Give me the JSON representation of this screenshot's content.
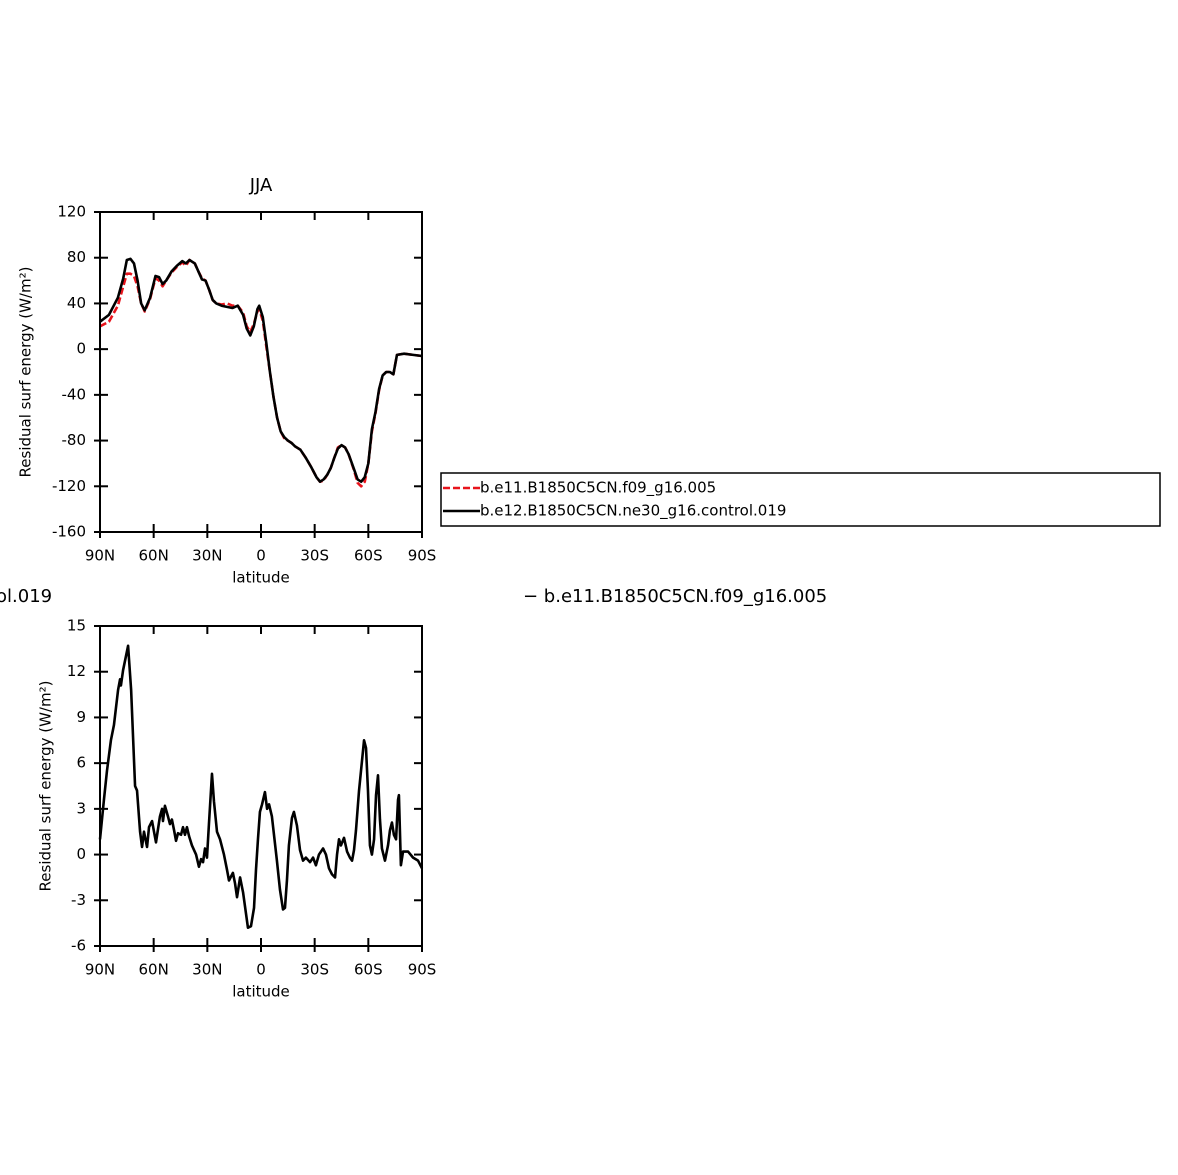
{
  "chart_data": [
    {
      "type": "line",
      "title": "JJA",
      "xlabel": "latitude",
      "ylabel": "Residual surf energy (W/m²)",
      "xlim": [
        90,
        -90
      ],
      "ylim": [
        -160,
        120
      ],
      "xticks": [
        {
          "value": 90,
          "label": "90N"
        },
        {
          "value": 60,
          "label": "60N"
        },
        {
          "value": 30,
          "label": "30N"
        },
        0,
        {
          "value": -30,
          "label": "30S"
        },
        {
          "value": -60,
          "label": "60S"
        },
        {
          "value": -90,
          "label": "90S"
        }
      ],
      "yticks": [
        -160,
        -120,
        -80,
        -40,
        0,
        40,
        80,
        120
      ],
      "x": [
        90,
        85,
        80,
        77,
        75,
        73,
        71,
        69,
        67,
        65,
        62,
        59,
        57,
        55,
        53,
        50,
        47,
        44,
        42,
        40,
        37,
        35,
        33,
        31,
        29,
        27,
        25,
        22,
        19,
        16,
        13,
        10,
        8,
        6,
        4,
        2,
        1,
        -1,
        -3,
        -5,
        -7,
        -9,
        -11,
        -13,
        -15,
        -17,
        -19,
        -22,
        -25,
        -28,
        -31,
        -33,
        -35,
        -37,
        -39,
        -41,
        -43,
        -45,
        -47,
        -49,
        -52,
        -54,
        -56,
        -58,
        -60,
        -62,
        -64,
        -66,
        -68,
        -70,
        -72,
        -74,
        -76,
        -80,
        -85,
        -90
      ],
      "series": [
        {
          "name": "b.e11.B1850C5CN.f09_g16.005",
          "color": "#e8141c",
          "linestyle": "dashed",
          "values": [
            20,
            24,
            38,
            55,
            66,
            66,
            64,
            55,
            40,
            33,
            44,
            62,
            60,
            55,
            60,
            67,
            72,
            76,
            73,
            78,
            75,
            68,
            62,
            60,
            52,
            43,
            40,
            39,
            40,
            38,
            38,
            32,
            20,
            15,
            22,
            33,
            35,
            25,
            2,
            -20,
            -42,
            -60,
            -72,
            -78,
            -80,
            -82,
            -85,
            -88,
            -95,
            -103,
            -112,
            -116,
            -115,
            -110,
            -104,
            -95,
            -86,
            -84,
            -86,
            -92,
            -106,
            -117,
            -120,
            -116,
            -100,
            -72,
            -56,
            -36,
            -23,
            -20,
            -20,
            -22,
            -5,
            -4,
            -5,
            -6
          ]
        },
        {
          "name": "b.e12.B1850C5CN.ne30_g16.control.019",
          "color": "#000000",
          "linestyle": "solid",
          "values": [
            24,
            30,
            45,
            62,
            78,
            79,
            75,
            60,
            40,
            34,
            45,
            64,
            63,
            57,
            60,
            68,
            73,
            77,
            75,
            78,
            75,
            68,
            61,
            60,
            52,
            43,
            40,
            38,
            37,
            36,
            38,
            30,
            18,
            12,
            20,
            35,
            38,
            28,
            5,
            -20,
            -42,
            -60,
            -72,
            -77,
            -80,
            -82,
            -85,
            -88,
            -95,
            -103,
            -112,
            -116,
            -114,
            -110,
            -104,
            -95,
            -87,
            -84,
            -86,
            -92,
            -105,
            -114,
            -116,
            -112,
            -100,
            -70,
            -55,
            -35,
            -23,
            -20,
            -20,
            -22,
            -5,
            -4,
            -5,
            -6
          ]
        }
      ]
    },
    {
      "type": "line",
      "title_parts": [
        "ol.019",
        "− b.e11.B1850C5CN.f09_g16.005"
      ],
      "xlabel": "latitude",
      "ylabel": "Residual surf energy (W/m²)",
      "xlim": [
        90,
        -90
      ],
      "ylim": [
        -6,
        15
      ],
      "xticks": [
        {
          "value": 90,
          "label": "90N"
        },
        {
          "value": 60,
          "label": "60N"
        },
        {
          "value": 30,
          "label": "30N"
        },
        0,
        {
          "value": -30,
          "label": "30S"
        },
        {
          "value": -60,
          "label": "60S"
        },
        {
          "value": -90,
          "label": "90S"
        }
      ],
      "yticks": [
        -6,
        -3,
        0,
        3,
        6,
        9,
        12,
        15
      ],
      "color": "#000000",
      "x": [
        90,
        87.8,
        86.1,
        83.9,
        82.2,
        79.9,
        78.8,
        78.3,
        77.1,
        74.3,
        72.6,
        70.4,
        69.3,
        67.6,
        66.5,
        65.4,
        63.7,
        62.6,
        60.9,
        59.8,
        58.7,
        56.5,
        55.3,
        54.8,
        53.7,
        52,
        50.9,
        49.8,
        48.6,
        47.5,
        46.4,
        44.7,
        43.6,
        42.5,
        41.4,
        40.2,
        38.6,
        36.3,
        34.7,
        33.5,
        32.4,
        31.3,
        30.2,
        29.1,
        27.4,
        26.3,
        24.6,
        22.9,
        20.7,
        19,
        17.9,
        15.7,
        14.5,
        13.4,
        11.7,
        10,
        7.3,
        5.6,
        3.9,
        2.8,
        1.7,
        0.6,
        -0.6,
        -2.2,
        -3.4,
        -4.5,
        -6.1,
        -8.9,
        -10.6,
        -12.3,
        -13.4,
        -14.5,
        -15.6,
        -17.3,
        -18.4,
        -20.1,
        -21.8,
        -23.5,
        -25.1,
        -27.4,
        -29.1,
        -30.7,
        -32.4,
        -34.7,
        -36.3,
        -38,
        -39.7,
        -41.4,
        -42.5,
        -43.6,
        -44.7,
        -46.4,
        -48.1,
        -49.7,
        -50.9,
        -52,
        -53.1,
        -54.8,
        -56.5,
        -57.6,
        -58.7,
        -59.8,
        -60.9,
        -62,
        -63.2,
        -64.3,
        -65.4,
        -66.5,
        -67.6,
        -69.3,
        -71,
        -72.1,
        -73.2,
        -74.3,
        -75.5,
        -76.6,
        -77.1,
        -78.2,
        -79.4,
        -82.2,
        -85,
        -87.8,
        -90
      ],
      "values": [
        1,
        3.6,
        5.5,
        7.5,
        8.5,
        10.8,
        11.5,
        11.1,
        12.1,
        13.7,
        10.8,
        4.5,
        4.2,
        1.5,
        0.5,
        1.5,
        0.5,
        1.8,
        2.2,
        1.5,
        0.8,
        2.5,
        3,
        2.2,
        3.2,
        2.5,
        2,
        2.3,
        1.6,
        0.9,
        1.4,
        1.3,
        1.8,
        1.3,
        1.8,
        1.2,
        0.6,
        0,
        -0.8,
        -0.3,
        -0.5,
        0.4,
        -0.2,
        2,
        5.3,
        3.5,
        1.5,
        1,
        0,
        -1,
        -1.7,
        -1.2,
        -1.9,
        -2.8,
        -1.5,
        -2.5,
        -4.8,
        -4.7,
        -3.5,
        -1,
        1,
        2.8,
        3.3,
        4.1,
        3,
        3.3,
        2.5,
        -0.4,
        -2.3,
        -3.6,
        -3.5,
        -1.7,
        0.6,
        2.4,
        2.8,
        1.9,
        0.3,
        -0.4,
        -0.2,
        -0.5,
        -0.2,
        -0.7,
        0,
        0.4,
        0,
        -0.9,
        -1.3,
        -1.5,
        0,
        1,
        0.6,
        1.1,
        0.2,
        -0.2,
        -0.4,
        0.3,
        1.6,
        4.2,
        6.2,
        7.5,
        7,
        4.2,
        0.6,
        0,
        1,
        3.9,
        5.2,
        2.3,
        0.4,
        -0.4,
        0.6,
        1.6,
        2.1,
        1.3,
        1,
        3.6,
        3.9,
        -0.7,
        0.2,
        0.2,
        -0.2,
        -0.4,
        -0.9
      ]
    }
  ]
}
